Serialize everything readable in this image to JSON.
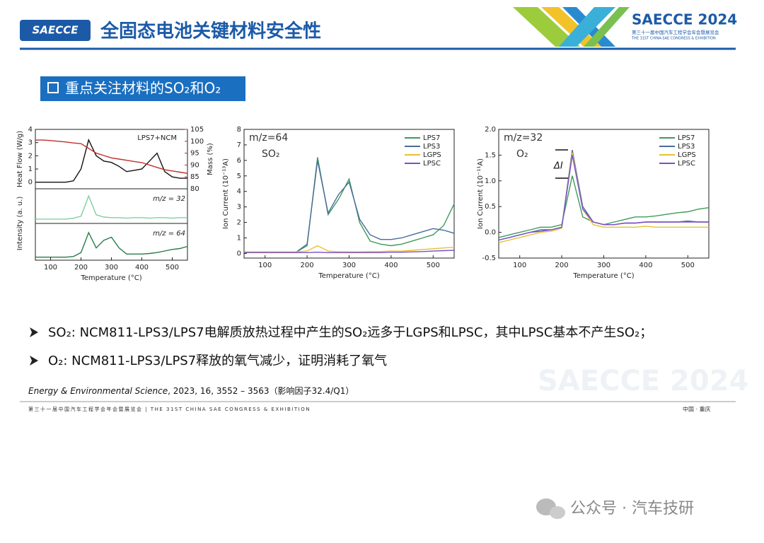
{
  "header": {
    "logo": "SAECCE",
    "title": "全固态电池关键材料安全性",
    "event": "SAECCE 2024",
    "event_sub1": "第三十一届中国汽车工程学会年会暨展览会",
    "event_sub2": "THE 31ST CHINA-SAE CONGRESS & EXHIBITION"
  },
  "section": "重点关注材料的SO₂和O₂",
  "bullets": [
    "SO₂: NCM811-LPS3/LPS7电解质放热过程中产生的SO₂远多于LGPS和LPSC，其中LPSC基本不产生SO₂；",
    "O₂: NCM811-LPS3/LPS7释放的氧气减少，证明消耗了氧气"
  ],
  "citation": {
    "journal": "Energy & Environmental Science",
    "rest": ", 2023, 16, 3552 – 3563（影响因子32.4/Q1）"
  },
  "footer": {
    "left": "第三十一届中国汽车工程学会年会暨展览会 | THE 31ST CHINA SAE CONGRESS & EXHIBITION",
    "right": "中国 · 重庆"
  },
  "watermark": "SAECCE 2024",
  "account": "公众号 · 汽车技研",
  "chart_data": [
    {
      "type": "line",
      "title": "LPS7+NCM",
      "xlabel": "Temperature (°C)",
      "ylabel": "Intensity (a. u.)",
      "xlim": [
        50,
        550
      ],
      "xticks": [
        100,
        200,
        300,
        400,
        500
      ],
      "x": [
        50,
        75,
        100,
        125,
        150,
        175,
        200,
        225,
        250,
        275,
        300,
        325,
        350,
        375,
        400,
        425,
        450,
        475,
        500,
        525,
        550
      ],
      "panels": [
        {
          "ylabel": "Heat Flow (W/g)",
          "ylim": [
            -0.5,
            4
          ],
          "yticks": [
            0,
            1,
            2,
            3,
            4
          ],
          "y2label": "Mass (%)",
          "y2lim": [
            80,
            105
          ],
          "y2ticks": [
            80,
            85,
            90,
            95,
            100,
            105
          ],
          "series": [
            {
              "color": "#111111",
              "values": [
                0,
                0,
                0,
                0,
                0,
                0.1,
                1.0,
                3.2,
                2.0,
                1.6,
                1.5,
                1.2,
                0.8,
                0.9,
                1.0,
                1.6,
                2.2,
                0.8,
                0.4,
                0.3,
                0.3
              ]
            },
            {
              "color": "#c0302a",
              "axis": "y2",
              "values": [
                100.5,
                100.5,
                100.3,
                100,
                99.7,
                99.3,
                99,
                97,
                95,
                94,
                93,
                92.5,
                92,
                91.5,
                91,
                90,
                89,
                88,
                87.5,
                87,
                86.5
              ]
            }
          ]
        },
        {
          "label": "m/z = 32",
          "ylim": [
            0,
            1.2
          ],
          "series": [
            {
              "color": "#7fd0a0",
              "values": [
                0.15,
                0.15,
                0.15,
                0.15,
                0.15,
                0.18,
                0.25,
                0.95,
                0.3,
                0.22,
                0.2,
                0.2,
                0.18,
                0.2,
                0.2,
                0.18,
                0.2,
                0.2,
                0.18,
                0.2,
                0.2
              ]
            }
          ]
        },
        {
          "label": "m/z = 64",
          "ylim": [
            0,
            1.2
          ],
          "series": [
            {
              "color": "#2a7a4a",
              "values": [
                0.1,
                0.1,
                0.1,
                0.1,
                0.1,
                0.12,
                0.25,
                0.9,
                0.4,
                0.65,
                0.75,
                0.4,
                0.2,
                0.2,
                0.2,
                0.22,
                0.25,
                0.3,
                0.35,
                0.38,
                0.45
              ]
            }
          ]
        }
      ]
    },
    {
      "type": "line",
      "annotations": [
        "m/z=64",
        "SO₂"
      ],
      "xlabel": "Temperature (°C)",
      "ylabel": "Ion Current (10⁻¹³A)",
      "xlim": [
        50,
        550
      ],
      "xticks": [
        100,
        200,
        300,
        400,
        500
      ],
      "ylim": [
        -0.3,
        8
      ],
      "yticks": [
        0,
        1,
        2,
        3,
        4,
        5,
        6,
        7,
        8
      ],
      "x": [
        50,
        75,
        100,
        125,
        150,
        175,
        200,
        225,
        250,
        275,
        300,
        325,
        350,
        375,
        400,
        425,
        450,
        475,
        500,
        525,
        550
      ],
      "series": [
        {
          "name": "LPS7",
          "color": "#3f9a5c",
          "values": [
            0.1,
            0.1,
            0.1,
            0.1,
            0.1,
            0.1,
            0.5,
            6.2,
            2.5,
            3.5,
            4.8,
            2.0,
            0.8,
            0.6,
            0.5,
            0.6,
            0.8,
            1.0,
            1.2,
            1.8,
            3.2
          ]
        },
        {
          "name": "LPS3",
          "color": "#4b6b9a",
          "values": [
            0.1,
            0.1,
            0.1,
            0.1,
            0.1,
            0.1,
            0.6,
            6.0,
            2.6,
            3.8,
            4.6,
            2.2,
            1.2,
            0.9,
            0.9,
            1.0,
            1.2,
            1.4,
            1.6,
            1.5,
            1.3
          ]
        },
        {
          "name": "LGPS",
          "color": "#e8c030",
          "values": [
            0.1,
            0.1,
            0.1,
            0.1,
            0.1,
            0.1,
            0.15,
            0.5,
            0.15,
            0.1,
            0.1,
            0.1,
            0.12,
            0.12,
            0.15,
            0.15,
            0.2,
            0.25,
            0.3,
            0.35,
            0.4
          ]
        },
        {
          "name": "LPSC",
          "color": "#7a50c8",
          "values": [
            0.05,
            0.05,
            0.05,
            0.05,
            0.05,
            0.05,
            0.05,
            0.08,
            0.05,
            0.05,
            0.05,
            0.05,
            0.05,
            0.05,
            0.08,
            0.08,
            0.1,
            0.12,
            0.15,
            0.18,
            0.2
          ]
        }
      ]
    },
    {
      "type": "line",
      "annotations": [
        "m/z=32",
        "O₂",
        "ΔI"
      ],
      "xlabel": "Temperature (°C)",
      "ylabel": "Ion Current (10⁻¹¹A)",
      "xlim": [
        50,
        550
      ],
      "xticks": [
        100,
        200,
        300,
        400,
        500
      ],
      "ylim": [
        -0.5,
        2.0
      ],
      "yticks": [
        -0.5,
        {
          "value": 0,
          "label": "0.0"
        },
        0.5,
        {
          "value": 1,
          "label": "1.0"
        },
        1.5,
        {
          "value": 2,
          "label": "2.0"
        }
      ],
      "x": [
        50,
        75,
        100,
        125,
        150,
        175,
        200,
        225,
        250,
        275,
        300,
        325,
        350,
        375,
        400,
        425,
        450,
        475,
        500,
        525,
        550
      ],
      "series": [
        {
          "name": "LPS7",
          "color": "#3f9a5c",
          "values": [
            -0.1,
            -0.05,
            0,
            0.05,
            0.1,
            0.1,
            0.15,
            1.1,
            0.3,
            0.2,
            0.15,
            0.2,
            0.25,
            0.3,
            0.3,
            0.32,
            0.35,
            0.38,
            0.4,
            0.45,
            0.48
          ]
        },
        {
          "name": "LPS3",
          "color": "#4b6b9a",
          "values": [
            -0.15,
            -0.1,
            -0.05,
            0,
            0.05,
            0.05,
            0.1,
            1.6,
            0.5,
            0.2,
            0.15,
            0.15,
            0.18,
            0.18,
            0.2,
            0.2,
            0.2,
            0.2,
            0.22,
            0.2,
            0.2
          ]
        },
        {
          "name": "LGPS",
          "color": "#e8c030",
          "values": [
            -0.2,
            -0.15,
            -0.1,
            -0.05,
            0,
            0.02,
            0.08,
            1.55,
            0.45,
            0.15,
            0.1,
            0.1,
            0.1,
            0.1,
            0.12,
            0.1,
            0.1,
            0.1,
            0.1,
            0.1,
            0.1
          ]
        },
        {
          "name": "LPSC",
          "color": "#7a50c8",
          "values": [
            -0.15,
            -0.1,
            -0.05,
            0,
            0.02,
            0.05,
            0.1,
            1.5,
            0.45,
            0.2,
            0.15,
            0.15,
            0.18,
            0.18,
            0.2,
            0.2,
            0.2,
            0.2,
            0.2,
            0.2,
            0.2
          ]
        }
      ]
    }
  ]
}
